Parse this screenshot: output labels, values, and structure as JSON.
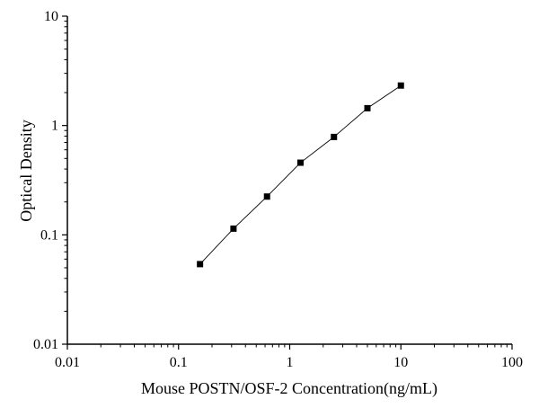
{
  "chart_data": {
    "type": "scatter",
    "title": "",
    "xlabel": "Mouse POSTN/OSF-2 Concentration(ng/mL)",
    "ylabel": "Optical Density",
    "x_scale": "log",
    "y_scale": "log",
    "xlim": [
      0.01,
      100
    ],
    "ylim": [
      0.01,
      10
    ],
    "x_ticks": [
      0.01,
      0.1,
      1,
      10,
      100
    ],
    "x_tick_labels": [
      "0.01",
      "0.1",
      "1",
      "10",
      "100"
    ],
    "y_ticks": [
      0.01,
      0.1,
      1,
      10
    ],
    "y_tick_labels": [
      "0.01",
      "0.1",
      "1",
      "10"
    ],
    "grid": false,
    "legend": "none",
    "marker": "square",
    "line": "connected",
    "color": "#000000",
    "series": [
      {
        "x": [
          0.156,
          0.312,
          0.625,
          1.25,
          2.5,
          5,
          10
        ],
        "y": [
          0.054,
          0.114,
          0.224,
          0.457,
          0.786,
          1.44,
          2.32
        ]
      }
    ]
  }
}
